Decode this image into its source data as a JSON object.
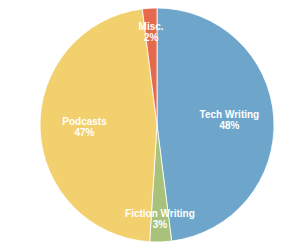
{
  "chart_data": {
    "type": "pie",
    "categories": [
      "Tech Writing",
      "Fiction Writing",
      "Podcasts",
      "Misc."
    ],
    "values": [
      48,
      3,
      47,
      2
    ],
    "value_labels": [
      "48%",
      "3%",
      "47%",
      "2%"
    ],
    "colors": [
      "#6ea6cb",
      "#a9c27b",
      "#f3d06e",
      "#e5694d"
    ],
    "data_labels": true
  }
}
